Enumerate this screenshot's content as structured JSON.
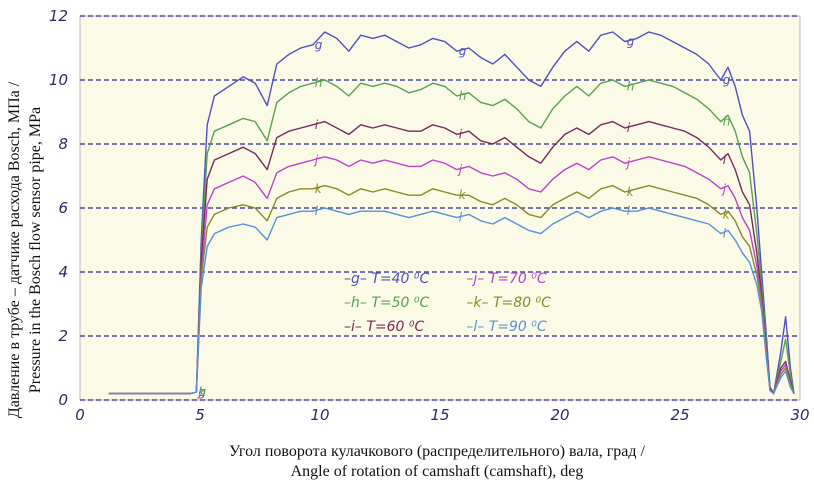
{
  "chart_data": {
    "type": "line",
    "xlabel_line1": "Угол поворота кулачкового (распределительного) вала, град /",
    "xlabel_line2": "Angle of rotation of camshaft (camshaft), deg",
    "ylabel_line1": "Давление в  трубе – датчике расхода Bosch, МПа /",
    "ylabel_line2": "Pressure in the Bosch flow sensor pipe, MPa",
    "xlim": [
      0,
      30
    ],
    "ylim": [
      0,
      12
    ],
    "xticks": [
      0,
      5,
      10,
      15,
      20,
      25,
      30
    ],
    "yticks": [
      0,
      2,
      4,
      6,
      8,
      10,
      12
    ],
    "grid": "horizontal",
    "legend_position": "center-bottom",
    "base_x": [
      1.2,
      4.6,
      4.85,
      5.05,
      5.3,
      5.6,
      6.2,
      6.8,
      7.3,
      7.8,
      8.2,
      8.7,
      9.2,
      9.7,
      10.2,
      10.7,
      11.2,
      11.7,
      12.2,
      12.7,
      13.2,
      13.7,
      14.2,
      14.7,
      15.2,
      15.7,
      16.2,
      16.7,
      17.2,
      17.7,
      18.2,
      18.7,
      19.2,
      19.7,
      20.2,
      20.7,
      21.2,
      21.7,
      22.2,
      22.7,
      23.2,
      23.7,
      24.2,
      24.7,
      25.2,
      25.7,
      26.2,
      26.7,
      27.0,
      27.3,
      27.6,
      27.9,
      28.2,
      28.4,
      28.6,
      28.75,
      28.9,
      29.2,
      29.4,
      29.6,
      29.75
    ],
    "series": [
      {
        "name": "g",
        "label": "T=40 ⁰С",
        "color": "#5050c0",
        "peak": 11.5,
        "values": [
          0.2,
          0.2,
          0.25,
          5.0,
          8.6,
          9.5,
          9.8,
          10.1,
          9.9,
          9.2,
          10.5,
          10.8,
          11.0,
          11.1,
          11.5,
          11.3,
          10.9,
          11.4,
          11.3,
          11.4,
          11.2,
          11.0,
          11.1,
          11.3,
          11.2,
          10.9,
          11.0,
          10.7,
          10.5,
          10.8,
          10.4,
          10.0,
          9.8,
          10.4,
          10.9,
          11.2,
          10.9,
          11.4,
          11.5,
          11.2,
          11.3,
          11.5,
          11.4,
          11.2,
          11.0,
          10.8,
          10.5,
          10.0,
          10.4,
          9.8,
          8.9,
          8.4,
          6.0,
          4.0,
          2.0,
          0.4,
          0.2,
          1.5,
          2.6,
          1.0,
          0.2
        ]
      },
      {
        "name": "h",
        "label": "T=50 ⁰С",
        "color": "#5aa050",
        "peak": 10.0,
        "values": [
          0.2,
          0.2,
          0.25,
          4.6,
          7.7,
          8.4,
          8.6,
          8.8,
          8.7,
          8.1,
          9.3,
          9.6,
          9.8,
          9.9,
          10.0,
          9.8,
          9.5,
          9.9,
          9.8,
          9.9,
          9.8,
          9.6,
          9.7,
          9.9,
          9.8,
          9.5,
          9.6,
          9.3,
          9.2,
          9.4,
          9.1,
          8.7,
          8.5,
          9.1,
          9.5,
          9.8,
          9.5,
          9.9,
          10.0,
          9.8,
          9.9,
          10.0,
          9.9,
          9.8,
          9.6,
          9.4,
          9.1,
          8.7,
          8.9,
          8.4,
          7.6,
          7.1,
          5.2,
          3.6,
          1.8,
          0.4,
          0.2,
          1.2,
          1.9,
          0.8,
          0.2
        ]
      },
      {
        "name": "i",
        "label": "T=60 ⁰С",
        "color": "#7a2a5a",
        "peak": 8.7,
        "values": [
          0.2,
          0.2,
          0.25,
          4.3,
          6.9,
          7.5,
          7.7,
          7.9,
          7.7,
          7.2,
          8.2,
          8.4,
          8.5,
          8.6,
          8.7,
          8.5,
          8.3,
          8.6,
          8.5,
          8.6,
          8.5,
          8.4,
          8.4,
          8.6,
          8.5,
          8.3,
          8.4,
          8.1,
          8.0,
          8.2,
          7.9,
          7.6,
          7.4,
          7.9,
          8.3,
          8.5,
          8.3,
          8.6,
          8.7,
          8.5,
          8.6,
          8.7,
          8.6,
          8.5,
          8.4,
          8.2,
          7.9,
          7.5,
          7.7,
          7.2,
          6.5,
          6.1,
          4.6,
          3.3,
          1.6,
          0.4,
          0.2,
          1.0,
          1.2,
          0.6,
          0.2
        ]
      },
      {
        "name": "j",
        "label": "T=70 ⁰С",
        "color": "#c040c8",
        "peak": 7.6,
        "values": [
          0.2,
          0.2,
          0.25,
          4.0,
          6.1,
          6.6,
          6.8,
          7.0,
          6.8,
          6.3,
          7.1,
          7.3,
          7.4,
          7.5,
          7.6,
          7.5,
          7.3,
          7.5,
          7.4,
          7.5,
          7.4,
          7.3,
          7.3,
          7.5,
          7.4,
          7.2,
          7.3,
          7.1,
          7.0,
          7.1,
          6.9,
          6.6,
          6.5,
          6.9,
          7.2,
          7.4,
          7.2,
          7.5,
          7.6,
          7.4,
          7.5,
          7.6,
          7.5,
          7.4,
          7.3,
          7.1,
          6.9,
          6.6,
          6.7,
          6.3,
          5.7,
          5.3,
          4.2,
          3.1,
          1.5,
          0.3,
          0.2,
          0.9,
          1.1,
          0.5,
          0.2
        ]
      },
      {
        "name": "k",
        "label": "T=80 ⁰С",
        "color": "#8a8a2a",
        "peak": 6.7,
        "values": [
          0.2,
          0.2,
          0.25,
          3.8,
          5.4,
          5.8,
          6.0,
          6.1,
          6.0,
          5.6,
          6.3,
          6.5,
          6.6,
          6.6,
          6.7,
          6.6,
          6.4,
          6.6,
          6.5,
          6.6,
          6.5,
          6.4,
          6.4,
          6.6,
          6.5,
          6.4,
          6.4,
          6.2,
          6.1,
          6.3,
          6.1,
          5.8,
          5.7,
          6.1,
          6.3,
          6.5,
          6.3,
          6.6,
          6.7,
          6.5,
          6.6,
          6.7,
          6.6,
          6.5,
          6.4,
          6.3,
          6.1,
          5.8,
          5.9,
          5.6,
          5.1,
          4.8,
          3.9,
          3.0,
          1.4,
          0.3,
          0.2,
          0.8,
          1.0,
          0.5,
          0.2
        ]
      },
      {
        "name": "l",
        "label": "T=90 ⁰С",
        "color": "#5a90d8",
        "peak": 6.0,
        "values": [
          0.2,
          0.2,
          0.25,
          3.5,
          4.8,
          5.2,
          5.4,
          5.5,
          5.4,
          5.0,
          5.7,
          5.8,
          5.9,
          5.9,
          6.0,
          5.9,
          5.8,
          5.9,
          5.9,
          5.9,
          5.8,
          5.7,
          5.8,
          5.9,
          5.8,
          5.7,
          5.8,
          5.6,
          5.5,
          5.7,
          5.5,
          5.3,
          5.2,
          5.5,
          5.7,
          5.9,
          5.7,
          5.9,
          6.0,
          5.9,
          5.9,
          6.0,
          5.9,
          5.8,
          5.7,
          5.6,
          5.5,
          5.2,
          5.3,
          5.0,
          4.6,
          4.3,
          3.6,
          2.8,
          1.3,
          0.3,
          0.2,
          0.7,
          0.9,
          0.4,
          0.2
        ]
      }
    ]
  }
}
